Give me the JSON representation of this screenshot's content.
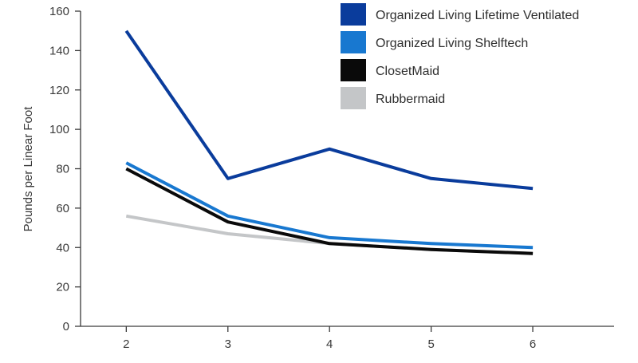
{
  "chart_data": {
    "type": "line",
    "title": "",
    "xlabel": "",
    "ylabel": "Pounds per Linear Foot",
    "x": [
      2,
      3,
      4,
      5,
      6
    ],
    "xlim": [
      1.55,
      6.8
    ],
    "ylim": [
      0,
      160
    ],
    "yticks": [
      0,
      20,
      40,
      60,
      80,
      100,
      120,
      140,
      160
    ],
    "grid": false,
    "legend_position": "top-right",
    "series": [
      {
        "name": "Organized Living Lifetime Ventilated",
        "color": "#0a3c9c",
        "values": [
          150,
          75,
          90,
          75,
          70
        ]
      },
      {
        "name": "Organized Living Shelftech",
        "color": "#1878d0",
        "values": [
          83,
          56,
          45,
          42,
          40
        ]
      },
      {
        "name": "ClosetMaid",
        "color": "#0a0a0a",
        "values": [
          80,
          53,
          42,
          39,
          37
        ]
      },
      {
        "name": "Rubbermaid",
        "color": "#c4c6c8",
        "values": [
          56,
          47,
          42,
          39,
          37
        ]
      }
    ]
  }
}
